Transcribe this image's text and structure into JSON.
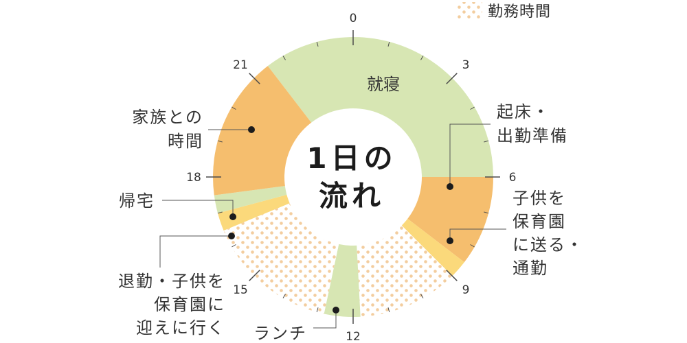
{
  "chart_data": {
    "type": "pie",
    "title_lines": [
      "1日の",
      "流れ"
    ],
    "legend": {
      "label": "勤務時間",
      "pattern": "dots"
    },
    "ticks": [
      "0",
      "3",
      "6",
      "9",
      "12",
      "15",
      "18",
      "21"
    ],
    "slices": [
      {
        "label_lines": [
          "就寝"
        ],
        "start": 21.5,
        "end": 6.0,
        "color": "#d7e6b3",
        "pattern": false
      },
      {
        "label_lines": [
          "起床・",
          "出勤準備"
        ],
        "start": 6.0,
        "end": 8.5,
        "color": "#f5be6e",
        "pattern": false
      },
      {
        "label_lines": [
          "子供を",
          "保育園",
          "に送る・",
          "通勤"
        ],
        "start": 8.5,
        "end": 9.0,
        "color": "#fbd97b",
        "pattern": false
      },
      {
        "label_lines": [],
        "start": 9.0,
        "end": 11.8,
        "color": "#ffffff",
        "pattern": true
      },
      {
        "label_lines": [
          "ランチ"
        ],
        "start": 11.8,
        "end": 12.8,
        "color": "#d7e6b3",
        "pattern": false
      },
      {
        "label_lines": [],
        "start": 12.8,
        "end": 16.5,
        "color": "#ffffff",
        "pattern": true
      },
      {
        "label_lines": [
          "退勤・子供を",
          "保育園に",
          "迎えに行く"
        ],
        "start": 16.5,
        "end": 17.0,
        "color": "#fbd97b",
        "pattern": false
      },
      {
        "label_lines": [
          "帰宅"
        ],
        "start": 17.0,
        "end": 17.5,
        "color": "#d7e6b3",
        "pattern": false
      },
      {
        "label_lines": [
          "家族との",
          "時間"
        ],
        "start": 17.5,
        "end": 21.5,
        "color": "#f5be6e",
        "pattern": false
      }
    ],
    "colors": {
      "dot": "#f3cd9e",
      "line": "#555555",
      "text": "#333333"
    }
  }
}
